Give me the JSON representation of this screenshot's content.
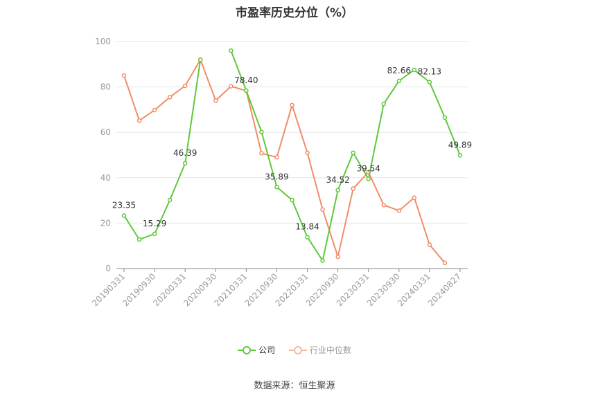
{
  "title": "市盈率历史分位（%）",
  "source": "数据来源：恒生聚源",
  "chart_data": {
    "type": "line",
    "x": [
      "20190331",
      "20190630",
      "20190930",
      "20191231",
      "20200331",
      "20200630",
      "20200930",
      "20201231",
      "20210331",
      "20210630",
      "20210930",
      "20211231",
      "20220331",
      "20220630",
      "20220930",
      "20221231",
      "20230331",
      "20230630",
      "20230930",
      "20231231",
      "20240331",
      "20240630",
      "20240827"
    ],
    "x_tick_labels": [
      "20190331",
      "20190930",
      "20200331",
      "20200930",
      "20210331",
      "20210930",
      "20220331",
      "20220930",
      "20230331",
      "20230930",
      "20240331",
      "20240827"
    ],
    "ylim": [
      0,
      100
    ],
    "y_ticks": [
      0,
      20,
      40,
      60,
      80,
      100
    ],
    "grid": true,
    "legend_position": "bottom",
    "series": [
      {
        "name": "公司",
        "color": "#5ec93a",
        "values": [
          23.35,
          12.8,
          15.29,
          30.2,
          46.39,
          92.0,
          null,
          96.0,
          78.4,
          60.2,
          35.89,
          30.2,
          13.84,
          3.5,
          34.52,
          51.0,
          39.54,
          72.5,
          82.66,
          87.5,
          82.13,
          66.5,
          49.89
        ],
        "data_labels": {
          "0": "23.35",
          "2": "15.29",
          "4": "46.39",
          "8": "78.40",
          "10": "35.89",
          "12": "13.84",
          "14": "34.52",
          "16": "39.54",
          "18": "82.66",
          "20": "82.13",
          "22": "49.89"
        }
      },
      {
        "name": "行业中位数",
        "color": "#f28c68",
        "values": [
          85.0,
          65.2,
          69.8,
          75.5,
          80.5,
          92.0,
          74.0,
          80.3,
          78.3,
          50.8,
          49.0,
          72.0,
          51.0,
          26.0,
          5.2,
          35.2,
          42.5,
          28.0,
          25.5,
          31.2,
          10.5,
          2.5,
          null
        ]
      }
    ]
  }
}
